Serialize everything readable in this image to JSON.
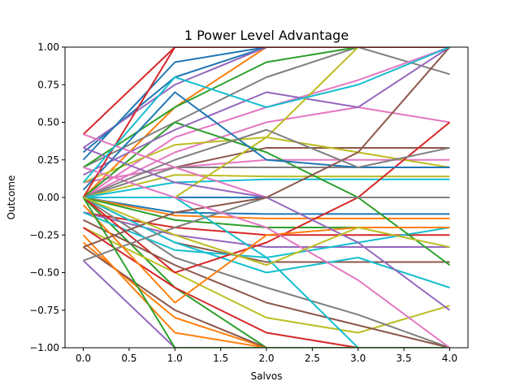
{
  "chart_data": {
    "type": "line",
    "title": "1 Power Level Advantage",
    "xlabel": "Salvos",
    "ylabel": "Outcome",
    "xlim": [
      -0.2,
      4.2
    ],
    "ylim": [
      -1.0,
      1.0
    ],
    "xticks": [
      0.0,
      0.5,
      1.0,
      1.5,
      2.0,
      2.5,
      3.0,
      3.5,
      4.0
    ],
    "yticks": [
      -1.0,
      -0.75,
      -0.5,
      -0.25,
      0.0,
      0.25,
      0.5,
      0.75,
      1.0
    ],
    "xtick_labels": [
      "0.0",
      "0.5",
      "1.0",
      "1.5",
      "2.0",
      "2.5",
      "3.0",
      "3.5",
      "4.0"
    ],
    "ytick_labels": [
      "−1.00",
      "−0.75",
      "−0.50",
      "−0.25",
      "0.00",
      "0.25",
      "0.50",
      "0.75",
      "1.00"
    ],
    "grid": false,
    "legend": "none",
    "colors": [
      "#1f77b4",
      "#ff7f0e",
      "#2ca02c",
      "#d62728",
      "#9467bd",
      "#8c564b",
      "#e377c2",
      "#7f7f7f",
      "#bcbd22",
      "#17becf"
    ],
    "x": [
      0,
      1,
      2,
      3,
      4
    ],
    "series": [
      {
        "values": [
          0.0,
          0.0,
          0.0,
          0.0,
          0.0
        ]
      },
      {
        "values": [
          0.0,
          0.6,
          1.0,
          1.0,
          1.0
        ]
      },
      {
        "values": [
          0.0,
          -0.6,
          -1.0,
          -1.0,
          -1.0
        ]
      },
      {
        "values": [
          0.42,
          1.0,
          1.0,
          1.0,
          1.0
        ]
      },
      {
        "values": [
          -0.42,
          -1.0,
          -1.0,
          -1.0,
          -1.0
        ]
      },
      {
        "values": [
          0.1,
          0.2,
          0.33,
          0.33,
          0.33
        ]
      },
      {
        "values": [
          0.1,
          0.2,
          0.25,
          0.25,
          0.25
        ]
      },
      {
        "values": [
          0.0,
          0.2,
          0.2,
          0.2,
          0.2
        ]
      },
      {
        "values": [
          0.0,
          0.15,
          0.14,
          0.14,
          0.14
        ]
      },
      {
        "values": [
          0.0,
          0.1,
          0.12,
          0.12,
          0.12
        ]
      },
      {
        "values": [
          0.0,
          -0.1,
          -0.11,
          -0.11,
          -0.11
        ]
      },
      {
        "values": [
          0.0,
          -0.12,
          -0.14,
          -0.14,
          -0.14
        ]
      },
      {
        "values": [
          0.0,
          -0.15,
          -0.2,
          -0.2,
          -0.2
        ]
      },
      {
        "values": [
          -0.1,
          -0.2,
          -0.25,
          -0.25,
          -0.25
        ]
      },
      {
        "values": [
          -0.1,
          -0.25,
          -0.33,
          -0.33,
          -0.33
        ]
      },
      {
        "values": [
          0.0,
          -0.3,
          -0.43,
          -0.43,
          -0.43
        ]
      },
      {
        "values": [
          0.0,
          0.3,
          0.5,
          0.6,
          0.5
        ]
      },
      {
        "values": [
          0.2,
          0.5,
          0.8,
          1.0,
          0.82
        ]
      },
      {
        "values": [
          -0.2,
          -0.5,
          -0.8,
          -0.9,
          -0.72
        ]
      },
      {
        "values": [
          0.0,
          -0.3,
          -0.5,
          -0.4,
          -0.6
        ]
      },
      {
        "values": [
          0.3,
          0.8,
          1.0,
          1.0,
          1.0
        ]
      },
      {
        "values": [
          -0.3,
          -0.8,
          -1.0,
          -1.0,
          -1.0
        ]
      },
      {
        "values": [
          0.2,
          0.6,
          0.9,
          1.0,
          1.0
        ]
      },
      {
        "values": [
          -0.2,
          -0.6,
          -0.9,
          -1.0,
          -1.0
        ]
      },
      {
        "values": [
          0.33,
          0.75,
          1.0,
          1.0,
          1.0
        ]
      },
      {
        "values": [
          -0.33,
          -0.75,
          -1.0,
          -1.0,
          -1.0
        ]
      },
      {
        "values": [
          0.0,
          0.4,
          0.6,
          0.78,
          1.0
        ]
      },
      {
        "values": [
          0.0,
          -0.4,
          -0.6,
          -0.78,
          -1.0
        ]
      },
      {
        "values": [
          0.1,
          0.35,
          0.4,
          0.3,
          0.2
        ]
      },
      {
        "values": [
          -0.1,
          -0.35,
          -0.4,
          -0.3,
          -0.2
        ]
      },
      {
        "values": [
          0.25,
          0.9,
          1.0,
          1.0,
          1.0
        ]
      },
      {
        "values": [
          -0.25,
          -0.9,
          -1.0,
          -1.0,
          -1.0
        ]
      },
      {
        "values": [
          0.0,
          0.5,
          0.3,
          0.0,
          -0.45
        ]
      },
      {
        "values": [
          0.0,
          -0.5,
          -0.3,
          0.0,
          0.5
        ]
      },
      {
        "values": [
          0.15,
          0.45,
          0.7,
          0.6,
          1.0
        ]
      },
      {
        "values": [
          -0.15,
          -0.45,
          -0.7,
          -0.85,
          -1.0
        ]
      },
      {
        "values": [
          0.42,
          0.2,
          0.0,
          0.0,
          0.0
        ]
      },
      {
        "values": [
          -0.42,
          -0.2,
          0.0,
          0.0,
          0.0
        ]
      },
      {
        "values": [
          0.0,
          0.0,
          0.4,
          1.0,
          1.0
        ]
      },
      {
        "values": [
          0.0,
          0.0,
          -0.4,
          -1.0,
          -1.0
        ]
      },
      {
        "values": [
          0.05,
          0.7,
          0.25,
          0.2,
          0.2
        ]
      },
      {
        "values": [
          -0.05,
          -0.7,
          -0.25,
          -0.2,
          -0.2
        ]
      },
      {
        "values": [
          0.0,
          -1.0,
          -1.0,
          -1.0,
          -1.0
        ]
      },
      {
        "values": [
          0.0,
          1.0,
          1.0,
          1.0,
          1.0
        ]
      },
      {
        "values": [
          0.33,
          0.1,
          0.0,
          -0.3,
          -0.75
        ]
      },
      {
        "values": [
          -0.33,
          -0.1,
          0.0,
          0.3,
          1.0
        ]
      },
      {
        "values": [
          0.2,
          0.0,
          -0.2,
          -0.55,
          -1.0
        ]
      },
      {
        "values": [
          0.0,
          0.25,
          0.45,
          0.2,
          0.33
        ]
      },
      {
        "values": [
          0.0,
          -0.25,
          -0.45,
          -0.2,
          -0.33
        ]
      },
      {
        "values": [
          0.1,
          0.8,
          0.6,
          0.75,
          1.0
        ]
      }
    ]
  }
}
